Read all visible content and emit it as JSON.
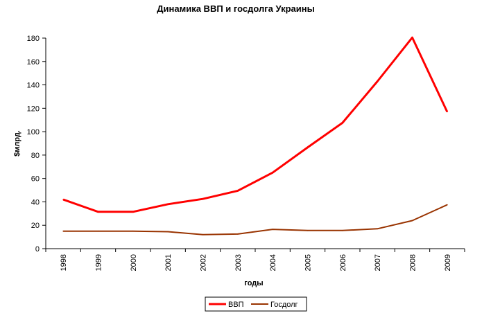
{
  "chart_data": {
    "type": "line",
    "title": "Динамика ВВП и госдолга Украины",
    "xlabel": "годы",
    "ylabel": "$млрд.",
    "categories": [
      "1998",
      "1999",
      "2000",
      "2001",
      "2002",
      "2003",
      "2004",
      "2005",
      "2006",
      "2007",
      "2008",
      "2009"
    ],
    "ylim": [
      0,
      180
    ],
    "yticks": [
      0,
      20,
      40,
      60,
      80,
      100,
      120,
      140,
      160,
      180
    ],
    "grid": false,
    "legend_position": "bottom",
    "series": [
      {
        "name": "ВВП",
        "color": "#ff0000",
        "values": [
          42,
          31.5,
          31.5,
          38,
          42.5,
          49.5,
          65,
          86.5,
          107.5,
          143,
          180.5,
          117
        ]
      },
      {
        "name": "Госдолг",
        "color": "#993300",
        "values": [
          15,
          15,
          15,
          14.5,
          12,
          12.5,
          16.5,
          15.5,
          15.5,
          17,
          24,
          37.5
        ]
      }
    ]
  }
}
